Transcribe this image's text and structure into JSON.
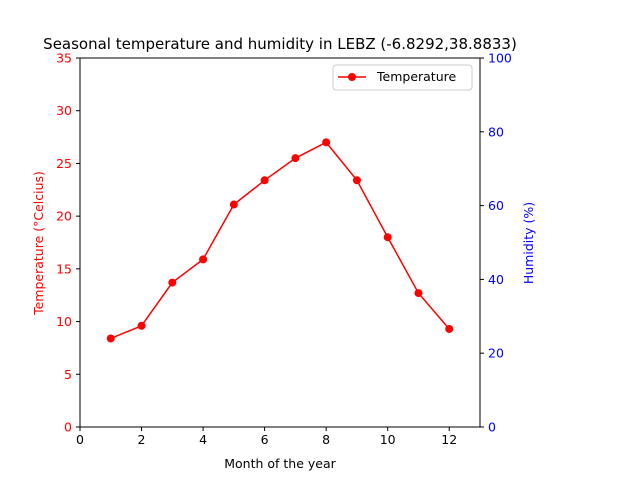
{
  "chart_data": {
    "type": "line",
    "title": "Seasonal temperature and humidity in LEBZ (-6.8292,38.8833)",
    "xlabel": "Month of the year",
    "ylabel_left": "Temperature (°Celcius)",
    "ylabel_right": "Humidity (%)",
    "xlim": [
      0,
      13
    ],
    "ylim_left": [
      0,
      35
    ],
    "ylim_right": [
      0,
      100
    ],
    "x_ticks": [
      0,
      2,
      4,
      6,
      8,
      10,
      12
    ],
    "y_left_ticks": [
      0,
      5,
      10,
      15,
      20,
      25,
      30,
      35
    ],
    "y_right_ticks": [
      0,
      20,
      40,
      60,
      80,
      100
    ],
    "grid": false,
    "legend_position": "top-right",
    "series": [
      {
        "name": "Temperature",
        "axis": "left",
        "color": "#ff0000",
        "x": [
          1,
          2,
          3,
          4,
          5,
          6,
          7,
          8,
          9,
          10,
          11,
          12
        ],
        "values": [
          8.4,
          9.6,
          13.7,
          15.9,
          21.1,
          23.4,
          25.5,
          27.0,
          23.4,
          18.0,
          12.7,
          9.3
        ]
      }
    ],
    "colors": {
      "left_axis": "#ff0000",
      "right_axis": "#0000ff",
      "frame": "#000000"
    }
  }
}
